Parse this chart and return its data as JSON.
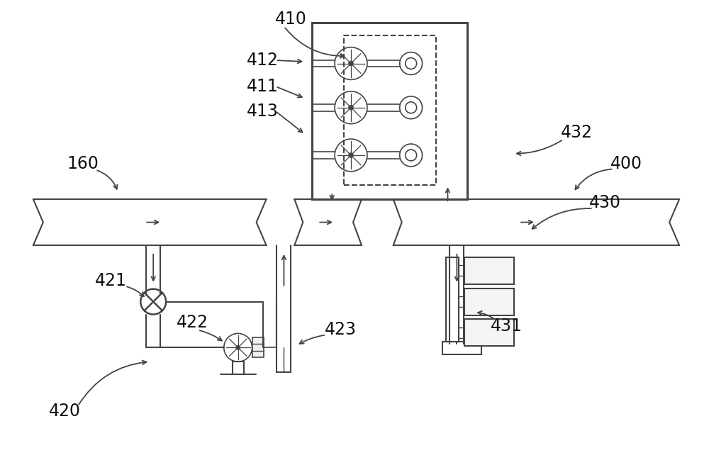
{
  "bg_color": "#ffffff",
  "lc": "#444444",
  "fig_width": 10.0,
  "fig_height": 6.56,
  "dpi": 100
}
